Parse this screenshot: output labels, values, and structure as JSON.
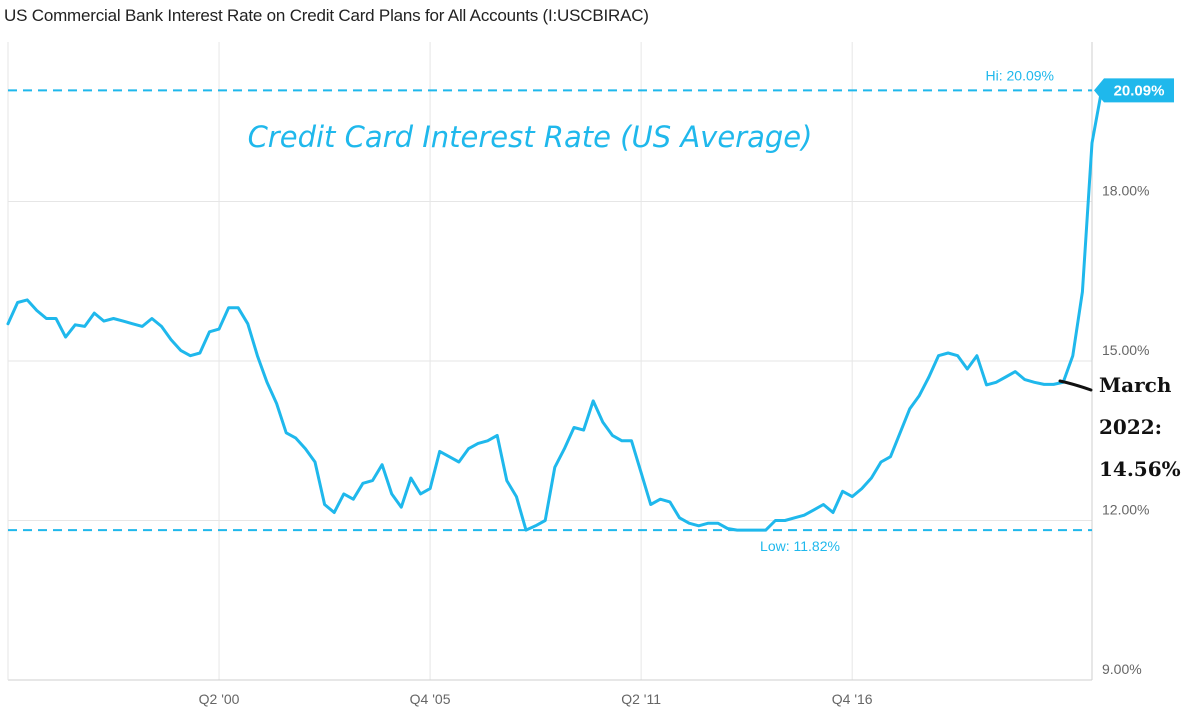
{
  "chart_data": {
    "type": "line",
    "title": "US Commercial Bank Interest Rate on Credit Card Plans for All Accounts (I:USCBIRAC)",
    "annotation_title": "Credit Card Interest Rate (US Average)",
    "annotation_note": [
      "March",
      "2022:",
      "14.56%"
    ],
    "x_ticks": [
      "Q2 '00",
      "Q4 '05",
      "Q2 '11",
      "Q4 '16"
    ],
    "y_ticks": [
      "9.00%",
      "12.00%",
      "15.00%",
      "18.00%"
    ],
    "ylim": [
      9,
      21
    ],
    "xlim": [
      "1994-11",
      "2023-02"
    ],
    "grid": true,
    "high": {
      "label": "Hi: 20.09%",
      "value": 20.09,
      "badge": "20.09%"
    },
    "low": {
      "label": "Low: 11.82%",
      "value": 11.82
    },
    "line_color": "#1fb8ec",
    "series": [
      {
        "values": [
          [
            "1994-11",
            15.7
          ],
          [
            "1995-02",
            16.1
          ],
          [
            "1995-05",
            16.15
          ],
          [
            "1995-08",
            15.95
          ],
          [
            "1995-11",
            15.8
          ],
          [
            "1996-02",
            15.8
          ],
          [
            "1996-05",
            15.45
          ],
          [
            "1996-08",
            15.68
          ],
          [
            "1996-11",
            15.65
          ],
          [
            "1997-02",
            15.9
          ],
          [
            "1997-05",
            15.75
          ],
          [
            "1997-08",
            15.8
          ],
          [
            "1997-11",
            15.75
          ],
          [
            "1998-02",
            15.7
          ],
          [
            "1998-05",
            15.65
          ],
          [
            "1998-08",
            15.8
          ],
          [
            "1998-11",
            15.65
          ],
          [
            "1999-02",
            15.4
          ],
          [
            "1999-05",
            15.2
          ],
          [
            "1999-08",
            15.1
          ],
          [
            "1999-11",
            15.15
          ],
          [
            "2000-02",
            15.55
          ],
          [
            "2000-05",
            15.6
          ],
          [
            "2000-08",
            16.0
          ],
          [
            "2000-11",
            16.0
          ],
          [
            "2001-02",
            15.7
          ],
          [
            "2001-05",
            15.1
          ],
          [
            "2001-08",
            14.6
          ],
          [
            "2001-11",
            14.2
          ],
          [
            "2002-02",
            13.65
          ],
          [
            "2002-05",
            13.55
          ],
          [
            "2002-08",
            13.35
          ],
          [
            "2002-11",
            13.1
          ],
          [
            "2003-02",
            12.3
          ],
          [
            "2003-05",
            12.15
          ],
          [
            "2003-08",
            12.5
          ],
          [
            "2003-11",
            12.4
          ],
          [
            "2004-02",
            12.7
          ],
          [
            "2004-05",
            12.75
          ],
          [
            "2004-08",
            13.05
          ],
          [
            "2004-11",
            12.5
          ],
          [
            "2005-02",
            12.25
          ],
          [
            "2005-05",
            12.8
          ],
          [
            "2005-08",
            12.5
          ],
          [
            "2005-11",
            12.6
          ],
          [
            "2006-02",
            13.3
          ],
          [
            "2006-05",
            13.2
          ],
          [
            "2006-08",
            13.1
          ],
          [
            "2006-11",
            13.35
          ],
          [
            "2007-02",
            13.45
          ],
          [
            "2007-05",
            13.5
          ],
          [
            "2007-08",
            13.6
          ],
          [
            "2007-11",
            12.75
          ],
          [
            "2008-02",
            12.45
          ],
          [
            "2008-05",
            11.82
          ],
          [
            "2008-08",
            11.9
          ],
          [
            "2008-11",
            12.0
          ],
          [
            "2009-02",
            13.0
          ],
          [
            "2009-05",
            13.35
          ],
          [
            "2009-08",
            13.75
          ],
          [
            "2009-11",
            13.7
          ],
          [
            "2010-02",
            14.25
          ],
          [
            "2010-05",
            13.85
          ],
          [
            "2010-08",
            13.6
          ],
          [
            "2010-11",
            13.5
          ],
          [
            "2011-02",
            13.5
          ],
          [
            "2011-05",
            12.9
          ],
          [
            "2011-08",
            12.3
          ],
          [
            "2011-11",
            12.4
          ],
          [
            "2012-02",
            12.35
          ],
          [
            "2012-05",
            12.05
          ],
          [
            "2012-08",
            11.95
          ],
          [
            "2012-11",
            11.9
          ],
          [
            "2013-02",
            11.95
          ],
          [
            "2013-05",
            11.95
          ],
          [
            "2013-08",
            11.85
          ],
          [
            "2013-11",
            11.82
          ],
          [
            "2014-02",
            11.82
          ],
          [
            "2014-05",
            11.82
          ],
          [
            "2014-08",
            11.82
          ],
          [
            "2014-11",
            12.0
          ],
          [
            "2015-02",
            12.0
          ],
          [
            "2015-05",
            12.05
          ],
          [
            "2015-08",
            12.1
          ],
          [
            "2015-11",
            12.2
          ],
          [
            "2016-02",
            12.3
          ],
          [
            "2016-05",
            12.15
          ],
          [
            "2016-08",
            12.55
          ],
          [
            "2016-11",
            12.45
          ],
          [
            "2017-02",
            12.6
          ],
          [
            "2017-05",
            12.8
          ],
          [
            "2017-08",
            13.1
          ],
          [
            "2017-11",
            13.2
          ],
          [
            "2018-02",
            13.65
          ],
          [
            "2018-05",
            14.1
          ],
          [
            "2018-08",
            14.35
          ],
          [
            "2018-11",
            14.7
          ],
          [
            "2019-02",
            15.1
          ],
          [
            "2019-05",
            15.15
          ],
          [
            "2019-08",
            15.1
          ],
          [
            "2019-11",
            14.85
          ],
          [
            "2020-02",
            15.1
          ],
          [
            "2020-05",
            14.55
          ],
          [
            "2020-08",
            14.6
          ],
          [
            "2020-11",
            14.7
          ],
          [
            "2021-02",
            14.8
          ],
          [
            "2021-05",
            14.65
          ],
          [
            "2021-08",
            14.6
          ],
          [
            "2021-11",
            14.56
          ],
          [
            "2022-02",
            14.56
          ],
          [
            "2022-05",
            14.6
          ],
          [
            "2022-08",
            15.1
          ],
          [
            "2022-11",
            16.3
          ],
          [
            "2023-02",
            19.1
          ],
          [
            "2023-05",
            20.09
          ]
        ]
      }
    ]
  }
}
